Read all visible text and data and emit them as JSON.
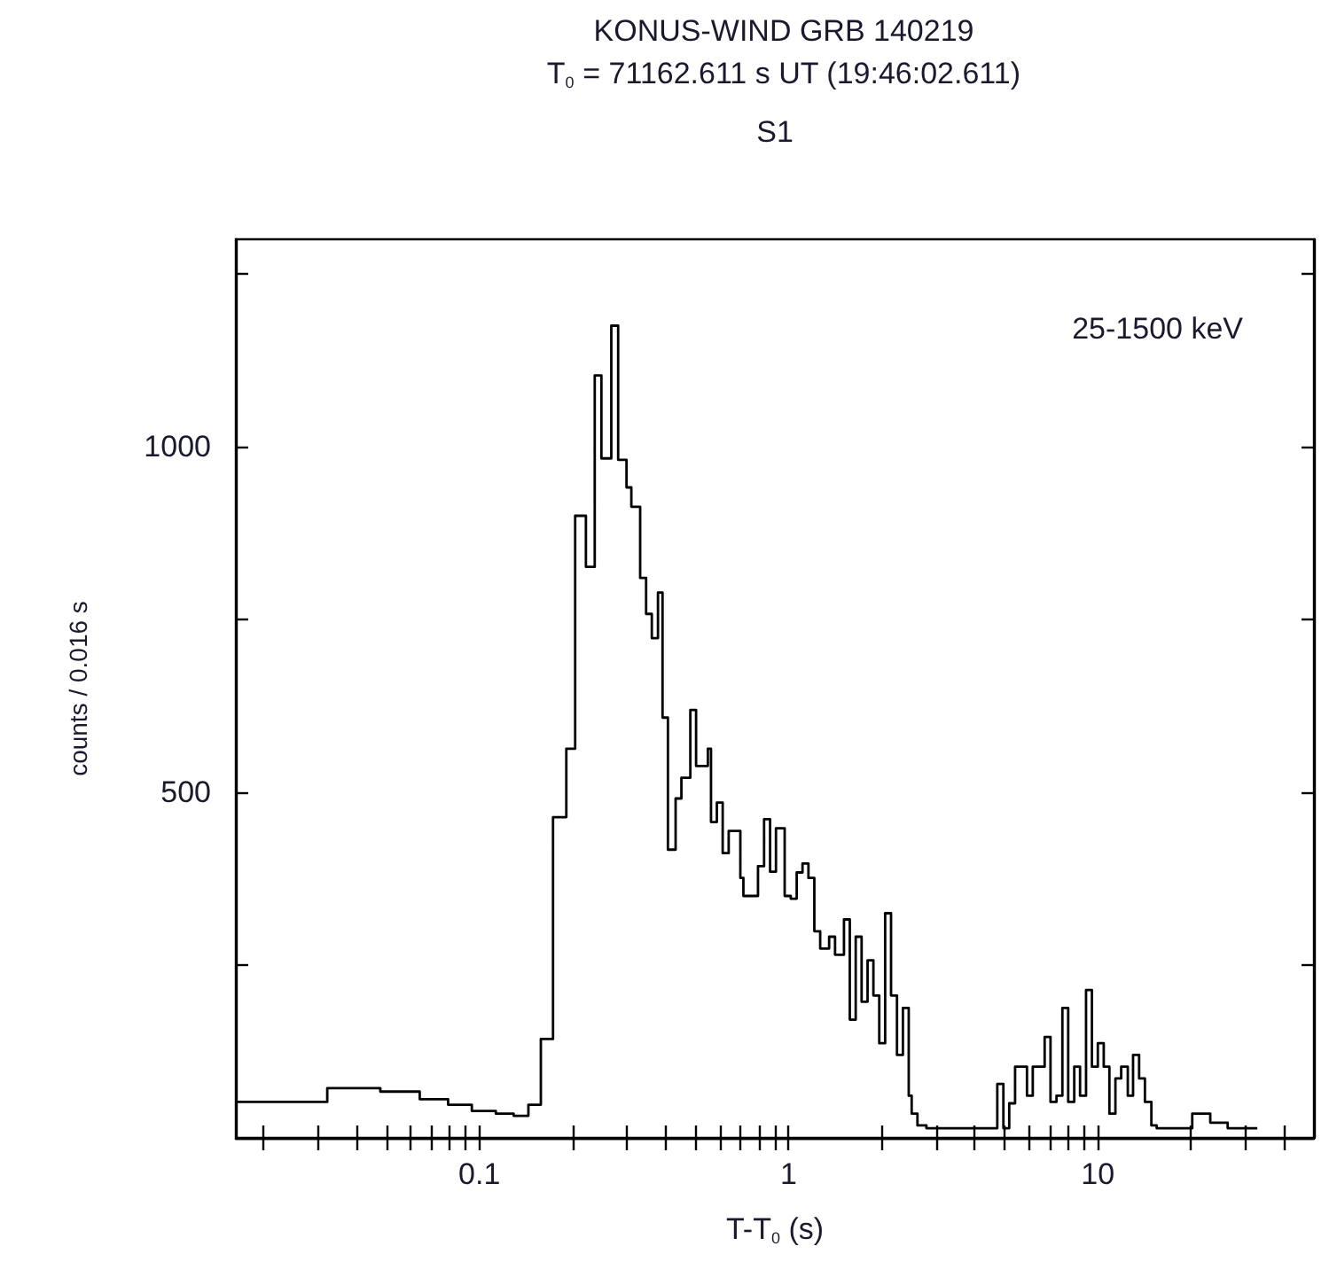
{
  "chart_data": {
    "type": "step",
    "title": "KONUS-WIND GRB 140219",
    "subtitle": "T$_{0}$ = 71162.611 s UT (19:46:02.611)",
    "annotations": [
      "S1",
      "25-1500 keV"
    ],
    "xlabel": "T-T$_{0}$ (s)",
    "ylabel": "counts / 0.016 s",
    "log": "x",
    "grid": false,
    "xlim": [
      0.0163,
      50
    ],
    "ylim": [
      0,
      1300
    ],
    "xticks": [
      {
        "value": 0.02,
        "label": null
      },
      {
        "value": 0.03,
        "label": null
      },
      {
        "value": 0.04,
        "label": null
      },
      {
        "value": 0.05,
        "label": null
      },
      {
        "value": 0.06,
        "label": null
      },
      {
        "value": 0.07,
        "label": null
      },
      {
        "value": 0.08,
        "label": null
      },
      {
        "value": 0.09,
        "label": null
      },
      0.1,
      {
        "value": 0.2,
        "label": null
      },
      {
        "value": 0.3,
        "label": null
      },
      {
        "value": 0.4,
        "label": null
      },
      {
        "value": 0.5,
        "label": null
      },
      {
        "value": 0.6,
        "label": null
      },
      {
        "value": 0.7,
        "label": null
      },
      {
        "value": 0.8,
        "label": null
      },
      {
        "value": 0.9,
        "label": null
      },
      1,
      {
        "value": 2,
        "label": null
      },
      {
        "value": 3,
        "label": null
      },
      {
        "value": 4,
        "label": null
      },
      {
        "value": 5,
        "label": null
      },
      {
        "value": 6,
        "label": null
      },
      {
        "value": 7,
        "label": null
      },
      {
        "value": 8,
        "label": null
      },
      {
        "value": 9,
        "label": null
      },
      10,
      {
        "value": 20,
        "label": null
      },
      {
        "value": 30,
        "label": null
      },
      {
        "value": 40,
        "label": null
      }
    ],
    "yticks": [
      {
        "value": 250,
        "label": null
      },
      500,
      {
        "value": 750,
        "label": null
      },
      1000,
      {
        "value": 1250,
        "label": null
      }
    ],
    "series": [
      {
        "color": "#000000",
        "x": [
          0.0163,
          0.0322,
          0.0478,
          0.0641,
          0.0792,
          0.0945,
          0.113,
          0.129,
          0.144,
          0.158,
          0.173,
          0.191,
          0.204,
          0.221,
          0.236,
          0.248,
          0.267,
          0.281,
          0.299,
          0.31,
          0.331,
          0.346,
          0.361,
          0.378,
          0.391,
          0.407,
          0.431,
          0.45,
          0.481,
          0.502,
          0.548,
          0.561,
          0.586,
          0.612,
          0.64,
          0.698,
          0.714,
          0.796,
          0.833,
          0.871,
          0.91,
          0.971,
          1.016,
          1.062,
          1.109,
          1.159,
          1.211,
          1.265,
          1.352,
          1.413,
          1.51,
          1.577,
          1.648,
          1.722,
          1.8,
          1.88,
          1.964,
          2.052,
          2.144,
          2.241,
          2.342,
          2.446,
          2.5,
          2.61,
          2.79,
          3.8,
          4.73,
          4.95,
          5.17,
          5.4,
          5.9,
          6.16,
          6.73,
          7.03,
          7.35,
          7.68,
          8.02,
          8.39,
          8.76,
          9.16,
          9.57,
          10.0,
          10.45,
          10.9,
          11.4,
          11.9,
          12.5,
          13.0,
          13.6,
          14.2,
          14.9,
          15.5,
          20.2,
          23.1,
          26.3,
          32.8
        ],
        "values": [
          52,
          72,
          67,
          56,
          48,
          39,
          35,
          32,
          48,
          143,
          464,
          563,
          900,
          826,
          1103,
          983,
          1175,
          981,
          941,
          913,
          810,
          758,
          723,
          789,
          608,
          417,
          491,
          521,
          619,
          538,
          563,
          457,
          485,
          412,
          444,
          376,
          350,
          393,
          461,
          385,
          448,
          350,
          346,
          384,
          397,
          376,
          299,
          274,
          291,
          265,
          316,
          171,
          291,
          197,
          257,
          206,
          137,
          325,
          206,
          120,
          188,
          61,
          35,
          18,
          14,
          14,
          78,
          14,
          50,
          103,
          61,
          103,
          146,
          52,
          61,
          188,
          52,
          103,
          61,
          214,
          103,
          137,
          103,
          35,
          86,
          103,
          61,
          120,
          86,
          52,
          18,
          14,
          35,
          22,
          14,
          14
        ]
      }
    ]
  }
}
